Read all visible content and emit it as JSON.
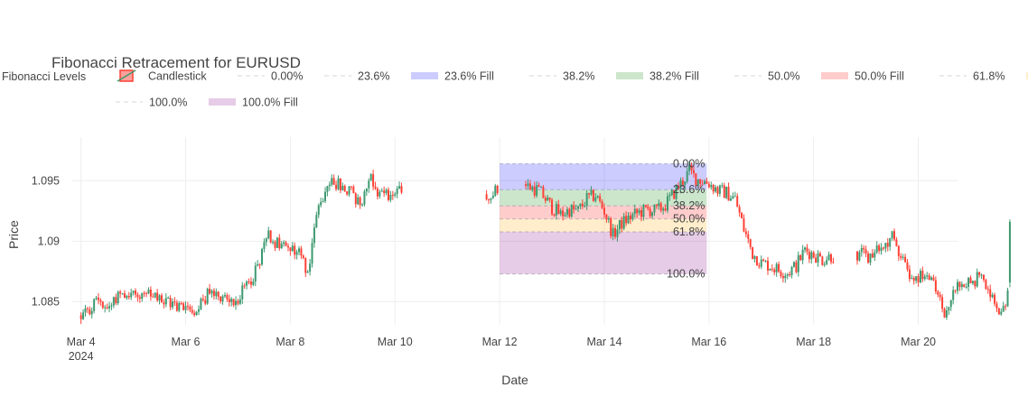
{
  "chart_data": {
    "type": "candlestick",
    "title": "Fibonacci Retracement for EURUSD",
    "xlabel": "Date",
    "ylabel": "Price",
    "legend_title": "Fibonacci Levels",
    "legend_placement": "top",
    "grid": true,
    "xlim": [
      "2024-03-03T20:00",
      "2024-03-20T18:00"
    ],
    "ylim": [
      1.0831,
      1.0986
    ],
    "x_ticks": [
      {
        "date": "2024-03-04",
        "label": "Mar 4",
        "sublabel": "2024"
      },
      {
        "date": "2024-03-06",
        "label": "Mar 6"
      },
      {
        "date": "2024-03-08",
        "label": "Mar 8"
      },
      {
        "date": "2024-03-10",
        "label": "Mar 10"
      },
      {
        "date": "2024-03-12",
        "label": "Mar 12"
      },
      {
        "date": "2024-03-14",
        "label": "Mar 14"
      },
      {
        "date": "2024-03-16",
        "label": "Mar 16"
      },
      {
        "date": "2024-03-18",
        "label": "Mar 18"
      },
      {
        "date": "2024-03-20",
        "label": "Mar 20"
      }
    ],
    "y_ticks": [
      {
        "value": 1.085,
        "label": "1.085"
      },
      {
        "value": 1.09,
        "label": "1.09"
      },
      {
        "value": 1.095,
        "label": "1.095"
      }
    ],
    "colors": {
      "increasing": "#3d9970",
      "decreasing": "#ff4136"
    },
    "price_path": [
      {
        "t": "2024-03-04T00:00",
        "p": 1.0838
      },
      {
        "t": "2024-03-04T03:00",
        "p": 1.0841
      },
      {
        "t": "2024-03-04T08:00",
        "p": 1.0853
      },
      {
        "t": "2024-03-04T12:00",
        "p": 1.0845
      },
      {
        "t": "2024-03-04T18:00",
        "p": 1.0858
      },
      {
        "t": "2024-03-05T04:00",
        "p": 1.0856
      },
      {
        "t": "2024-03-05T12:00",
        "p": 1.0851
      },
      {
        "t": "2024-03-05T20:00",
        "p": 1.0847
      },
      {
        "t": "2024-03-06T04:00",
        "p": 1.0845
      },
      {
        "t": "2024-03-06T10:00",
        "p": 1.0855
      },
      {
        "t": "2024-03-06T14:00",
        "p": 1.0858
      },
      {
        "t": "2024-03-06T22:00",
        "p": 1.085
      },
      {
        "t": "2024-03-07T04:00",
        "p": 1.0862
      },
      {
        "t": "2024-03-07T08:00",
        "p": 1.0876
      },
      {
        "t": "2024-03-07T11:00",
        "p": 1.089
      },
      {
        "t": "2024-03-07T14:00",
        "p": 1.0905
      },
      {
        "t": "2024-03-07T18:00",
        "p": 1.0898
      },
      {
        "t": "2024-03-08T00:00",
        "p": 1.0893
      },
      {
        "t": "2024-03-08T04:00",
        "p": 1.0892
      },
      {
        "t": "2024-03-08T08:00",
        "p": 1.0875
      },
      {
        "t": "2024-03-08T12:00",
        "p": 1.092
      },
      {
        "t": "2024-03-08T16:00",
        "p": 1.0945
      },
      {
        "t": "2024-03-08T20:00",
        "p": 1.095
      },
      {
        "t": "2024-03-09T00:00",
        "p": 1.0945
      },
      {
        "t": "2024-03-09T04:00",
        "p": 1.094
      },
      {
        "t": "2024-03-09T08:00",
        "p": 1.093
      },
      {
        "t": "2024-03-09T12:00",
        "p": 1.0955
      },
      {
        "t": "2024-03-09T16:00",
        "p": 1.0942
      },
      {
        "t": "2024-03-09T20:00",
        "p": 1.0938
      },
      {
        "t": "2024-03-10T02:00",
        "p": 1.094
      },
      {
        "t": "2024-03-10T04:00",
        "p": 1.0938
      },
      {
        "t": "2024-03-11T00:00",
        "p": null
      },
      {
        "t": "2024-03-11T18:00",
        "p": 1.0939
      },
      {
        "t": "2024-03-12T00:00",
        "p": 1.0941
      },
      {
        "t": "2024-03-12T04:00",
        "p": null
      },
      {
        "t": "2024-03-12T12:00",
        "p": 1.0946
      },
      {
        "t": "2024-03-12T18:00",
        "p": 1.0942
      },
      {
        "t": "2024-03-13T00:00",
        "p": 1.0928
      },
      {
        "t": "2024-03-13T04:00",
        "p": 1.0922
      },
      {
        "t": "2024-03-13T08:00",
        "p": 1.0926
      },
      {
        "t": "2024-03-13T12:00",
        "p": 1.0925
      },
      {
        "t": "2024-03-13T16:00",
        "p": 1.0935
      },
      {
        "t": "2024-03-13T20:00",
        "p": 1.0938
      },
      {
        "t": "2024-03-14T00:00",
        "p": 1.0925
      },
      {
        "t": "2024-03-14T04:00",
        "p": 1.0905
      },
      {
        "t": "2024-03-14T08:00",
        "p": 1.0915
      },
      {
        "t": "2024-03-14T12:00",
        "p": 1.092
      },
      {
        "t": "2024-03-14T16:00",
        "p": 1.0924
      },
      {
        "t": "2024-03-14T20:00",
        "p": 1.0926
      },
      {
        "t": "2024-03-15T00:00",
        "p": 1.0925
      },
      {
        "t": "2024-03-15T04:00",
        "p": 1.093
      },
      {
        "t": "2024-03-15T08:00",
        "p": 1.094
      },
      {
        "t": "2024-03-15T12:00",
        "p": 1.095
      },
      {
        "t": "2024-03-15T15:00",
        "p": 1.0958
      },
      {
        "t": "2024-03-15T18:00",
        "p": 1.0952
      },
      {
        "t": "2024-03-16T00:00",
        "p": 1.0948
      },
      {
        "t": "2024-03-16T04:00",
        "p": 1.0942
      },
      {
        "t": "2024-03-16T08:00",
        "p": 1.094
      },
      {
        "t": "2024-03-16T12:00",
        "p": 1.0935
      },
      {
        "t": "2024-03-16T16:00",
        "p": 1.091
      },
      {
        "t": "2024-03-16T20:00",
        "p": 1.089
      },
      {
        "t": "2024-03-17T00:00",
        "p": 1.0882
      },
      {
        "t": "2024-03-17T04:00",
        "p": 1.088
      },
      {
        "t": "2024-03-17T08:00",
        "p": 1.0876
      },
      {
        "t": "2024-03-17T12:00",
        "p": 1.0874
      },
      {
        "t": "2024-03-17T16:00",
        "p": 1.088
      },
      {
        "t": "2024-03-17T20:00",
        "p": 1.0893
      },
      {
        "t": "2024-03-18T00:00",
        "p": 1.0889
      },
      {
        "t": "2024-03-18T04:00",
        "p": 1.0885
      },
      {
        "t": "2024-03-18T08:00",
        "p": 1.0888
      },
      {
        "t": "2024-03-18T10:00",
        "p": 1.0887
      },
      {
        "t": "2024-03-18T14:00",
        "p": null
      },
      {
        "t": "2024-03-18T20:00",
        "p": 1.089
      },
      {
        "t": "2024-03-19T00:00",
        "p": 1.0887
      },
      {
        "t": "2024-03-19T04:00",
        "p": 1.089
      },
      {
        "t": "2024-03-19T08:00",
        "p": 1.0895
      },
      {
        "t": "2024-03-19T12:00",
        "p": 1.0903
      },
      {
        "t": "2024-03-19T16:00",
        "p": 1.089
      },
      {
        "t": "2024-03-19T20:00",
        "p": 1.087
      },
      {
        "t": "2024-03-20T00:00",
        "p": 1.0872
      },
      {
        "t": "2024-03-20T04:00",
        "p": 1.087
      },
      {
        "t": "2024-03-20T08:00",
        "p": 1.086
      },
      {
        "t": "2024-03-20T12:00",
        "p": 1.084
      },
      {
        "t": "2024-03-20T16:00",
        "p": 1.0858
      },
      {
        "t": "2024-03-20T20:00",
        "p": 1.0865
      },
      {
        "t": "2024-03-21T00:00",
        "p": 1.0866
      },
      {
        "t": "2024-03-21T04:00",
        "p": 1.087
      },
      {
        "t": "2024-03-21T08:00",
        "p": 1.0862
      },
      {
        "t": "2024-03-21T12:00",
        "p": 1.084
      },
      {
        "t": "2024-03-21T16:00",
        "p": 1.0845
      },
      {
        "t": "2024-03-21T18:00",
        "p": 1.0865
      }
    ],
    "final_candle": {
      "t": "2024-03-21T18:00",
      "open": 1.0866,
      "high": 1.0918,
      "low": 1.0862,
      "close": 1.0916
    },
    "fibonacci": {
      "x_range": [
        "2024-03-12T00:00",
        "2024-03-15T23:00"
      ],
      "levels": [
        {
          "label": "0.00%",
          "value": 1.0964,
          "legend_line": "0.00%"
        },
        {
          "label": "23.6%",
          "value": 1.09426,
          "legend_line": "23.6%",
          "fill_name": "23.6% Fill",
          "fill_color": "rgba(0,0,255,0.2)"
        },
        {
          "label": "38.2%",
          "value": 1.09293,
          "legend_line": "38.2%",
          "fill_name": "38.2% Fill",
          "fill_color": "rgba(0,128,0,0.2)"
        },
        {
          "label": "50.0%",
          "value": 1.09185,
          "legend_line": "50.0%",
          "fill_name": "50.0% Fill",
          "fill_color": "rgba(255,0,0,0.2)"
        },
        {
          "label": "61.8%",
          "value": 1.09078,
          "legend_line": "61.8%",
          "fill_name": "61.8% Fill",
          "fill_color": "rgba(255,165,0,0.2)"
        },
        {
          "label": "100.0%",
          "value": 1.0873,
          "legend_line": "100.0%",
          "fill_name": "100.0% Fill",
          "fill_color": "rgba(128,0,128,0.2)"
        }
      ]
    },
    "legend": {
      "candlestick": "Candlestick",
      "items_row1": [
        {
          "type": "line",
          "text": "0.00%"
        },
        {
          "type": "line",
          "text": "23.6%"
        },
        {
          "type": "fill",
          "text": "23.6% Fill",
          "color": "rgba(0,0,255,0.2)"
        },
        {
          "type": "line",
          "text": "38.2%"
        },
        {
          "type": "fill",
          "text": "38.2% Fill",
          "color": "rgba(0,128,0,0.2)"
        },
        {
          "type": "line",
          "text": "50.0%"
        },
        {
          "type": "fill",
          "text": "50.0% Fill",
          "color": "rgba(255,0,0,0.2)"
        },
        {
          "type": "line",
          "text": "61.8%"
        },
        {
          "type": "fill",
          "text": "61.8% Fill",
          "color": "rgba(255,165,0,0.2)"
        }
      ],
      "items_row2": [
        {
          "type": "line",
          "text": "100.0%"
        },
        {
          "type": "fill",
          "text": "100.0% Fill",
          "color": "rgba(128,0,128,0.2)"
        }
      ]
    }
  }
}
